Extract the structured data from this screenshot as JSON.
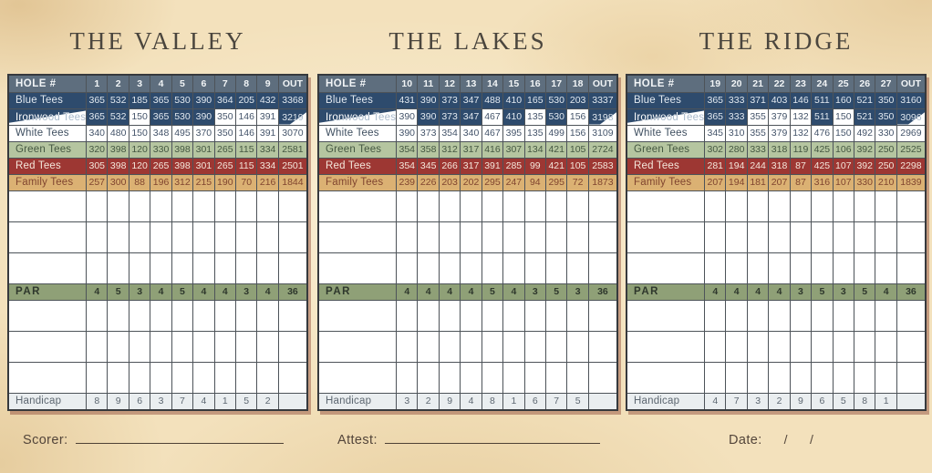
{
  "palette": {
    "parchment": "#f3e1bc",
    "header_bg": "#5e6e7e",
    "blue_tees": "#2e4b6d",
    "white_tees": "#ffffff",
    "green_tees": "#b5c5a0",
    "red_tees": "#9d3733",
    "family_tees": "#dbb173",
    "par_row": "#8fa077",
    "handicap_row": "#eaeef0",
    "table_shadow": "#8b4532",
    "title_text": "#4b463e"
  },
  "sections": [
    {
      "title": "THE VALLEY",
      "hole_header_label": "HOLE #",
      "out_label": "OUT",
      "holes": [
        "1",
        "2",
        "3",
        "4",
        "5",
        "6",
        "7",
        "8",
        "9"
      ],
      "rows": [
        {
          "label": "Blue Tees",
          "style": "blue",
          "values": [
            365,
            532,
            185,
            365,
            530,
            390,
            364,
            205,
            432
          ],
          "out": 3368
        },
        {
          "label": "Ironwood Tees",
          "style": "ironwood",
          "cell_styles": [
            "b",
            "b",
            "w",
            "b",
            "b",
            "b",
            "w",
            "w",
            "w"
          ],
          "values": [
            365,
            532,
            150,
            365,
            530,
            390,
            350,
            146,
            391
          ],
          "out": 3219
        },
        {
          "label": "White Tees",
          "style": "white",
          "values": [
            340,
            480,
            150,
            348,
            495,
            370,
            350,
            146,
            391
          ],
          "out": 3070
        },
        {
          "label": "Green Tees",
          "style": "green",
          "values": [
            320,
            398,
            120,
            330,
            398,
            301,
            265,
            115,
            334
          ],
          "out": 2581
        },
        {
          "label": "Red Tees",
          "style": "red",
          "values": [
            305,
            398,
            120,
            265,
            398,
            301,
            265,
            115,
            334
          ],
          "out": 2501
        },
        {
          "label": "Family Tees",
          "style": "family",
          "values": [
            257,
            300,
            88,
            196,
            312,
            215,
            190,
            70,
            216
          ],
          "out": 1844
        }
      ],
      "par": {
        "label": "PAR",
        "values": [
          4,
          5,
          3,
          4,
          5,
          4,
          4,
          3,
          4
        ],
        "out": 36
      },
      "handicap": {
        "label": "Handicap",
        "values": [
          8,
          9,
          6,
          3,
          7,
          4,
          1,
          5,
          2
        ],
        "out": ""
      }
    },
    {
      "title": "THE LAKES",
      "hole_header_label": "HOLE #",
      "out_label": "OUT",
      "holes": [
        "10",
        "11",
        "12",
        "13",
        "14",
        "15",
        "16",
        "17",
        "18"
      ],
      "rows": [
        {
          "label": "Blue Tees",
          "style": "blue",
          "values": [
            431,
            390,
            373,
            347,
            488,
            410,
            165,
            530,
            203
          ],
          "out": 3337
        },
        {
          "label": "Ironwood Tees",
          "style": "ironwood",
          "cell_styles": [
            "w",
            "b",
            "b",
            "b",
            "w",
            "b",
            "w",
            "b",
            "w"
          ],
          "values": [
            390,
            390,
            373,
            347,
            467,
            410,
            135,
            530,
            156
          ],
          "out": 3198
        },
        {
          "label": "White Tees",
          "style": "white",
          "values": [
            390,
            373,
            354,
            340,
            467,
            395,
            135,
            499,
            156
          ],
          "out": 3109
        },
        {
          "label": "Green Tees",
          "style": "green",
          "values": [
            354,
            358,
            312,
            317,
            416,
            307,
            134,
            421,
            105
          ],
          "out": 2724
        },
        {
          "label": "Red Tees",
          "style": "red",
          "values": [
            354,
            345,
            266,
            317,
            391,
            285,
            99,
            421,
            105
          ],
          "out": 2583
        },
        {
          "label": "Family Tees",
          "style": "family",
          "values": [
            239,
            226,
            203,
            202,
            295,
            247,
            94,
            295,
            72
          ],
          "out": 1873
        }
      ],
      "par": {
        "label": "PAR",
        "values": [
          4,
          4,
          4,
          4,
          5,
          4,
          3,
          5,
          3
        ],
        "out": 36
      },
      "handicap": {
        "label": "Handicap",
        "values": [
          3,
          2,
          9,
          4,
          8,
          1,
          6,
          7,
          5
        ],
        "out": ""
      }
    },
    {
      "title": "THE RIDGE",
      "hole_header_label": "HOLE #",
      "out_label": "OUT",
      "holes": [
        "19",
        "20",
        "21",
        "22",
        "23",
        "24",
        "25",
        "26",
        "27"
      ],
      "rows": [
        {
          "label": "Blue Tees",
          "style": "blue",
          "values": [
            365,
            333,
            371,
            403,
            146,
            511,
            160,
            521,
            350
          ],
          "out": 3160
        },
        {
          "label": "Ironwood Tees",
          "style": "ironwood",
          "cell_styles": [
            "b",
            "b",
            "w",
            "w",
            "w",
            "b",
            "w",
            "b",
            "b"
          ],
          "values": [
            365,
            333,
            355,
            379,
            132,
            511,
            150,
            521,
            350
          ],
          "out": 3096
        },
        {
          "label": "White Tees",
          "style": "white",
          "values": [
            345,
            310,
            355,
            379,
            132,
            476,
            150,
            492,
            330
          ],
          "out": 2969
        },
        {
          "label": "Green Tees",
          "style": "green",
          "values": [
            302,
            280,
            333,
            318,
            119,
            425,
            106,
            392,
            250
          ],
          "out": 2525
        },
        {
          "label": "Red Tees",
          "style": "red",
          "values": [
            281,
            194,
            244,
            318,
            87,
            425,
            107,
            392,
            250
          ],
          "out": 2298
        },
        {
          "label": "Family Tees",
          "style": "family",
          "values": [
            207,
            194,
            181,
            207,
            87,
            316,
            107,
            330,
            210
          ],
          "out": 1839
        }
      ],
      "par": {
        "label": "PAR",
        "values": [
          4,
          4,
          4,
          4,
          3,
          5,
          3,
          5,
          4
        ],
        "out": 36
      },
      "handicap": {
        "label": "Handicap",
        "values": [
          4,
          7,
          3,
          2,
          9,
          6,
          5,
          8,
          1
        ],
        "out": ""
      }
    }
  ],
  "layout_counts": {
    "empty_rows_above_par": 3,
    "empty_rows_below_par": 3
  },
  "footer": {
    "scorer_label": "Scorer:",
    "attest_label": "Attest:",
    "date_label": "Date:",
    "date_slashes": [
      "/",
      "/"
    ]
  }
}
